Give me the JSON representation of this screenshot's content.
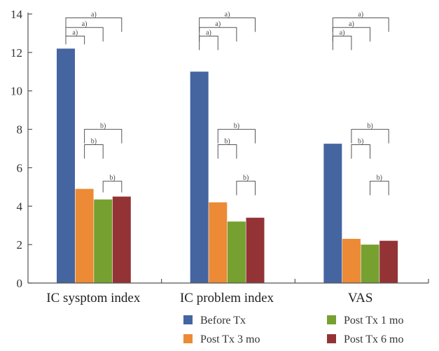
{
  "chart_data": {
    "type": "bar",
    "title": "",
    "xlabel": "",
    "ylabel": "",
    "ylim": [
      0,
      14
    ],
    "yticks": [
      0,
      2,
      4,
      6,
      8,
      10,
      12,
      14
    ],
    "grid": false,
    "legend_position": "bottom",
    "categories": [
      "IC sysptom index",
      "IC problem index",
      "VAS"
    ],
    "series": [
      {
        "name": "Before Tx",
        "color": "#4565a0",
        "values": [
          12.2,
          11.0,
          7.25
        ]
      },
      {
        "name": "Post Tx 3 mo",
        "color": "#ec8a36",
        "values": [
          4.9,
          4.2,
          2.3
        ]
      },
      {
        "name": "Post Tx 1 mo",
        "color": "#76a02f",
        "values": [
          4.35,
          3.2,
          2.0
        ]
      },
      {
        "name": "Post Tx 6 mo",
        "color": "#943336",
        "values": [
          4.5,
          3.4,
          2.2
        ]
      }
    ],
    "legend_order": [
      0,
      2,
      1,
      3
    ],
    "significance": [
      {
        "category": 0,
        "from": 0,
        "to": 1,
        "label": "a)",
        "level": 12.85
      },
      {
        "category": 0,
        "from": 0,
        "to": 2,
        "label": "a)",
        "level": 13.3
      },
      {
        "category": 0,
        "from": 0,
        "to": 3,
        "label": "a)",
        "level": 13.8
      },
      {
        "category": 0,
        "from": 1,
        "to": 2,
        "label": "b)",
        "level": 7.2
      },
      {
        "category": 0,
        "from": 1,
        "to": 3,
        "label": "b)",
        "level": 8.0
      },
      {
        "category": 0,
        "from": 2,
        "to": 3,
        "label": "b)",
        "level": 5.3
      },
      {
        "category": 1,
        "from": 0,
        "to": 1,
        "label": "a)",
        "level": 12.85
      },
      {
        "category": 1,
        "from": 0,
        "to": 2,
        "label": "a)",
        "level": 13.3
      },
      {
        "category": 1,
        "from": 0,
        "to": 3,
        "label": "a)",
        "level": 13.8
      },
      {
        "category": 1,
        "from": 1,
        "to": 2,
        "label": "b)",
        "level": 7.2
      },
      {
        "category": 1,
        "from": 1,
        "to": 3,
        "label": "b)",
        "level": 8.0
      },
      {
        "category": 1,
        "from": 2,
        "to": 3,
        "label": "b)",
        "level": 5.3
      },
      {
        "category": 2,
        "from": 0,
        "to": 1,
        "label": "a)",
        "level": 12.85
      },
      {
        "category": 2,
        "from": 0,
        "to": 2,
        "label": "a)",
        "level": 13.3
      },
      {
        "category": 2,
        "from": 0,
        "to": 3,
        "label": "a)",
        "level": 13.8
      },
      {
        "category": 2,
        "from": 1,
        "to": 2,
        "label": "b)",
        "level": 7.2
      },
      {
        "category": 2,
        "from": 1,
        "to": 3,
        "label": "b)",
        "level": 8.0
      },
      {
        "category": 2,
        "from": 2,
        "to": 3,
        "label": "b)",
        "level": 5.3
      }
    ]
  }
}
